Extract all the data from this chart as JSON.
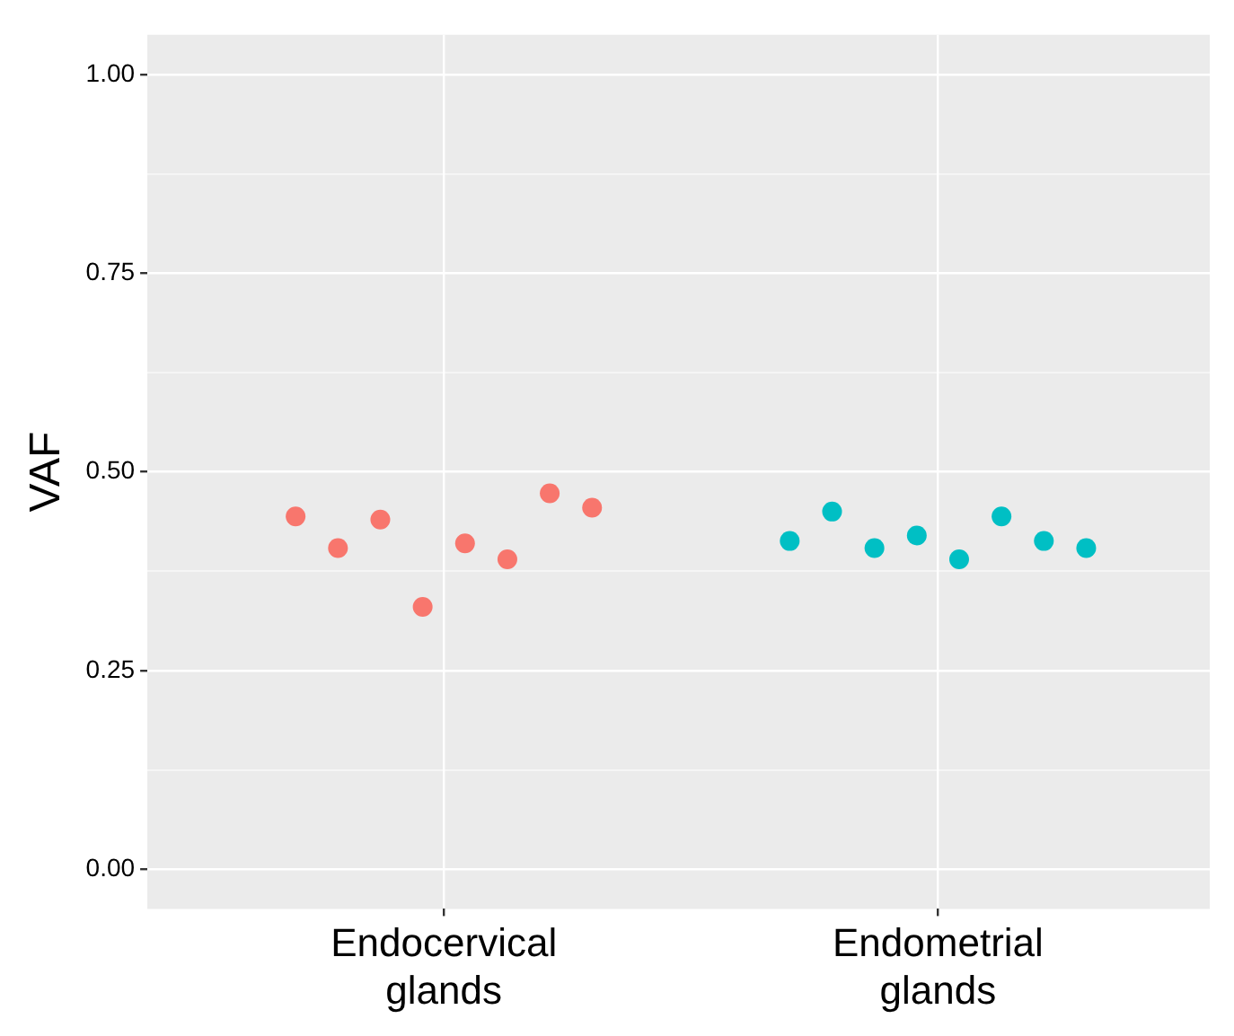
{
  "chart_data": {
    "type": "scatter",
    "ylabel": "VAF",
    "categories": [
      "Endocervical glands",
      "Endometrial glands"
    ],
    "series": [
      {
        "color": "#f8766d",
        "x": [
          "Endocervical glands",
          "Endocervical glands",
          "Endocervical glands",
          "Endocervical glands",
          "Endocervical glands",
          "Endocervical glands",
          "Endocervical glands",
          "Endocervical glands"
        ],
        "values": [
          0.444,
          0.404,
          0.44,
          0.33,
          0.41,
          0.39,
          0.473,
          0.455
        ]
      },
      {
        "color": "#00bfc4",
        "x": [
          "Endometrial glands",
          "Endometrial glands",
          "Endometrial glands",
          "Endometrial glands",
          "Endometrial glands",
          "Endometrial glands",
          "Endometrial glands",
          "Endometrial glands"
        ],
        "values": [
          0.413,
          0.45,
          0.404,
          0.42,
          0.39,
          0.444,
          0.413,
          0.404
        ]
      }
    ],
    "ylim": [
      -0.05,
      1.05
    ],
    "yticks": [
      {
        "value": 0,
        "label": "0.00"
      },
      {
        "value": 0.125,
        "label": null
      },
      {
        "value": 0.25,
        "label": "0.25"
      },
      {
        "value": 0.375,
        "label": null
      },
      {
        "value": 0.5,
        "label": "0.50"
      },
      {
        "value": 0.625,
        "label": null
      },
      {
        "value": 0.75,
        "label": "0.75"
      },
      {
        "value": 0.875,
        "label": null
      },
      {
        "value": 1,
        "label": "1.00"
      }
    ],
    "grid": true,
    "legend": false,
    "marker": "circle"
  }
}
